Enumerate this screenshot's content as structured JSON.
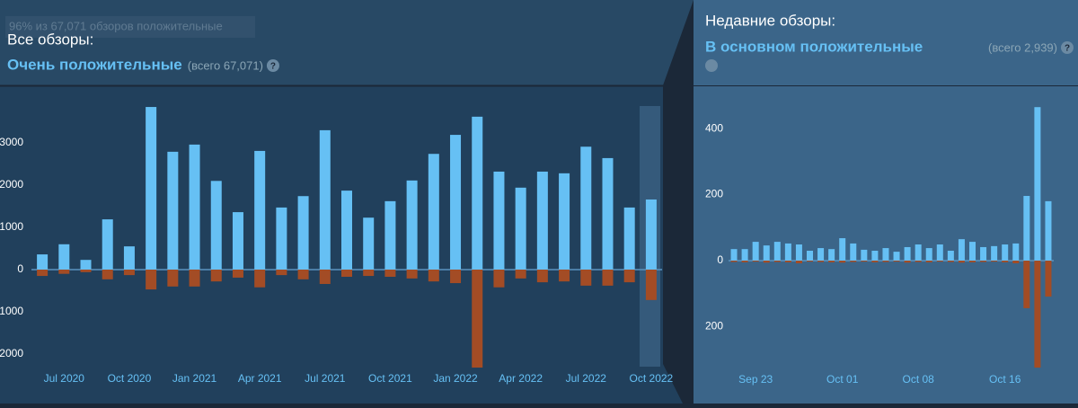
{
  "chart_data": [
    {
      "type": "bar",
      "tooltip": "96% из 67,071 обзоров положительные",
      "title": "Все обзоры:",
      "subtitle": "Очень положительные",
      "total": "(всего 67,071)",
      "help": "?",
      "categories": [
        null,
        "Jul 2020",
        null,
        null,
        "Oct 2020",
        null,
        null,
        "Jan 2021",
        null,
        null,
        "Apr 2021",
        null,
        null,
        "Jul 2021",
        null,
        null,
        "Oct 2021",
        null,
        null,
        "Jan 2022",
        null,
        null,
        "Apr 2022",
        null,
        null,
        "Jul 2022",
        null,
        null,
        "Oct 2022"
      ],
      "series": [
        {
          "color": "#66c0f4",
          "values": [
            360,
            600,
            230,
            1190,
            550,
            3850,
            2790,
            2960,
            2100,
            1360,
            2810,
            1470,
            1740,
            3300,
            1870,
            1230,
            1620,
            2110,
            2740,
            3190,
            3620,
            2320,
            1940,
            2320,
            2280,
            2910,
            2640,
            1470,
            1660
          ]
        },
        {
          "color": "#a34c25",
          "values": [
            -150,
            -100,
            -60,
            -230,
            -130,
            -470,
            -400,
            -400,
            -280,
            -190,
            -420,
            -130,
            -230,
            -340,
            -170,
            -150,
            -170,
            -210,
            -280,
            -320,
            -2320,
            -420,
            -210,
            -300,
            -280,
            -380,
            -380,
            -300,
            -720
          ]
        }
      ],
      "ylim": [
        -2400,
        4200
      ],
      "yticks": [
        {
          "value": -2000,
          "label": "2000"
        },
        {
          "value": -1000,
          "label": "1000"
        },
        0,
        1000,
        2000,
        3000
      ]
    },
    {
      "type": "bar",
      "title": "Недавние обзоры:",
      "subtitle": "В основном положительные",
      "total": "(всего 2,939)",
      "help": "?",
      "categories": [
        null,
        null,
        "Sep 23",
        null,
        null,
        null,
        null,
        null,
        null,
        null,
        "Oct 01",
        null,
        null,
        null,
        null,
        null,
        null,
        "Oct 08",
        null,
        null,
        null,
        null,
        null,
        null,
        null,
        "Oct 16",
        null,
        null,
        null,
        null
      ],
      "series": [
        {
          "color": "#66c0f4",
          "values": [
            35,
            35,
            57,
            46,
            57,
            52,
            49,
            30,
            38,
            35,
            68,
            52,
            33,
            30,
            38,
            27,
            41,
            49,
            38,
            49,
            30,
            65,
            57,
            41,
            44,
            49,
            52,
            196,
            465,
            180
          ]
        },
        {
          "color": "#a34c25",
          "values": [
            -4,
            -5,
            -3,
            -6,
            -4,
            -5,
            -8,
            -3,
            -4,
            -5,
            -6,
            -4,
            -3,
            -5,
            -4,
            -3,
            -6,
            -4,
            -5,
            -3,
            -4,
            -6,
            -5,
            -4,
            -3,
            -5,
            -8,
            -144,
            -324,
            -109
          ]
        }
      ],
      "ylim": [
        -350,
        520
      ],
      "yticks": [
        {
          "value": -200,
          "label": "200"
        },
        0,
        200,
        400
      ]
    }
  ]
}
